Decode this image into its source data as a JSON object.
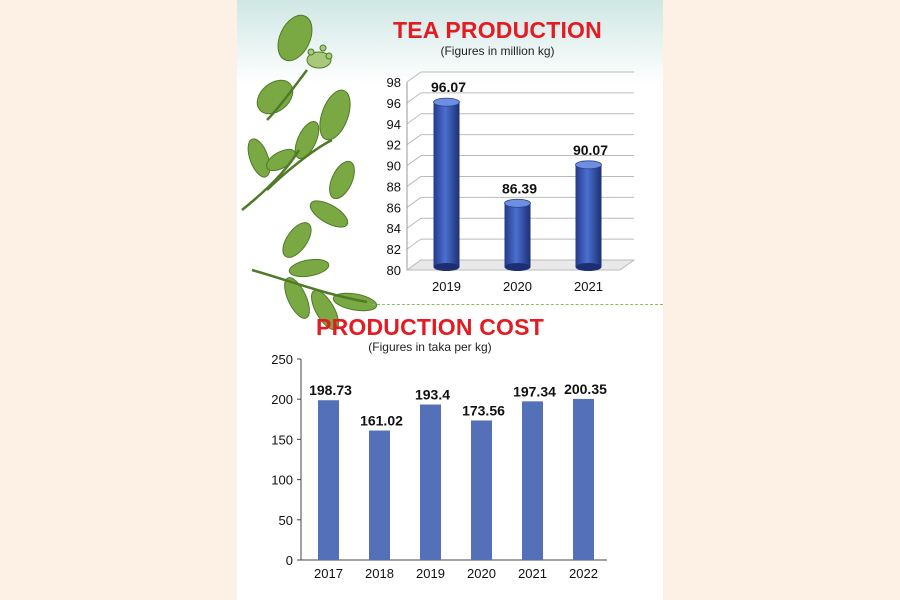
{
  "colors": {
    "title_red": "#e41b23",
    "bar_blue": "#5470b8",
    "leaf_green": "#6d9a3c",
    "background": "#fdf1e6"
  },
  "decor": {
    "illustration": "tea-leaves-illustration"
  },
  "chart_data": [
    {
      "type": "bar",
      "style": "3d-cylinder",
      "title": "TEA PRODUCTION",
      "subtitle": "(Figures in million kg)",
      "categories": [
        "2019",
        "2020",
        "2021"
      ],
      "values": [
        96.07,
        86.39,
        90.07
      ],
      "value_labels": [
        "96.07",
        "86.39",
        "90.07"
      ],
      "ylim": [
        80,
        98
      ],
      "yticks": [
        "80",
        "82",
        "84",
        "86",
        "88",
        "90",
        "92",
        "94",
        "96",
        "98"
      ],
      "grid": true
    },
    {
      "type": "bar",
      "title": "PRODUCTION COST",
      "subtitle": "(Figures in taka per kg)",
      "categories": [
        "2017",
        "2018",
        "2019",
        "2020",
        "2021",
        "2022"
      ],
      "values": [
        198.73,
        161.02,
        193.4,
        173.56,
        197.34,
        200.35
      ],
      "value_labels": [
        "198.73",
        "161.02",
        "193.4",
        "173.56",
        "197.34",
        "200.35"
      ],
      "ylim": [
        0,
        250
      ],
      "yticks": [
        "0",
        "50",
        "100",
        "150",
        "200",
        "250"
      ],
      "grid": false
    }
  ]
}
